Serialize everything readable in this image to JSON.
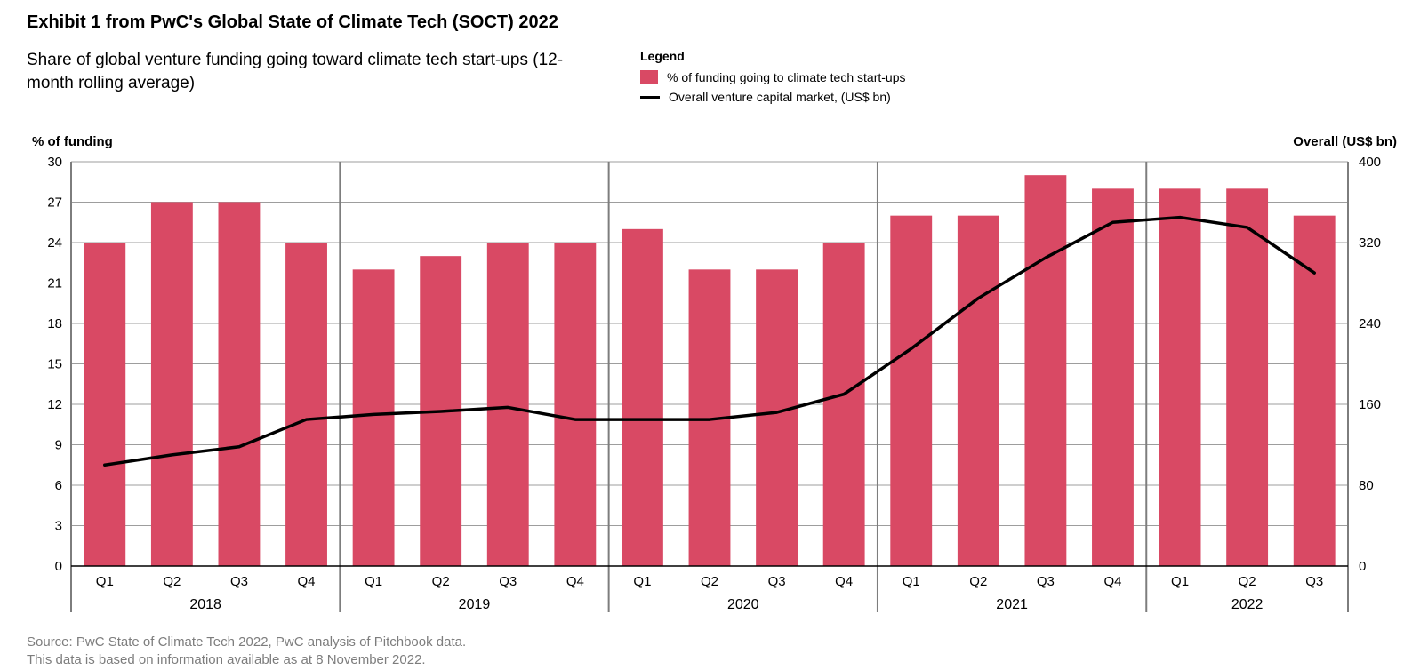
{
  "title": "Exhibit 1 from PwC's Global State of Climate Tech (SOCT) 2022",
  "subtitle": "Share of global venture funding going toward climate tech start-ups (12-month rolling average)",
  "legend": {
    "title": "Legend",
    "bar_label": "% of funding going to climate tech start-ups",
    "line_label": "Overall venture capital market, (US$ bn)"
  },
  "source": {
    "line1": "Source: PwC State of Climate Tech 2022, PwC analysis of Pitchbook data.",
    "line2": "This data is based on information available as at 8 November 2022."
  },
  "chart": {
    "type": "bar+line",
    "left_axis": {
      "title": "% of funding",
      "min": 0,
      "max": 30,
      "ticks": [
        0,
        3,
        6,
        9,
        12,
        15,
        18,
        21,
        24,
        27,
        30
      ]
    },
    "right_axis": {
      "title": "Overall (US$ bn)",
      "min": 0,
      "max": 400,
      "ticks": [
        0,
        80,
        160,
        240,
        320,
        400
      ]
    },
    "colors": {
      "bar_fill": "#d94964",
      "line_stroke": "#000000",
      "grid": "#7d7d7d",
      "year_separator": "#7d7d7d",
      "axis": "#000000",
      "background": "#ffffff",
      "source_text": "#7d7d7d"
    },
    "style": {
      "bar_width_ratio": 0.62,
      "line_width": 3.5,
      "separator_width": 2,
      "title_fontsize": 20,
      "subtitle_fontsize": 19,
      "axis_title_fontsize": 15,
      "tick_fontsize": 15,
      "legend_fontsize": 14,
      "source_fontsize": 15
    },
    "groups": [
      {
        "year": "2018",
        "quarters": [
          {
            "q": "Q1",
            "bar": 24,
            "line": 100
          },
          {
            "q": "Q2",
            "bar": 27,
            "line": 110
          },
          {
            "q": "Q3",
            "bar": 27,
            "line": 118
          },
          {
            "q": "Q4",
            "bar": 24,
            "line": 145
          }
        ]
      },
      {
        "year": "2019",
        "quarters": [
          {
            "q": "Q1",
            "bar": 22,
            "line": 150
          },
          {
            "q": "Q2",
            "bar": 23,
            "line": 153
          },
          {
            "q": "Q3",
            "bar": 24,
            "line": 157
          },
          {
            "q": "Q4",
            "bar": 24,
            "line": 145
          }
        ]
      },
      {
        "year": "2020",
        "quarters": [
          {
            "q": "Q1",
            "bar": 25,
            "line": 145
          },
          {
            "q": "Q2",
            "bar": 22,
            "line": 145
          },
          {
            "q": "Q3",
            "bar": 22,
            "line": 152
          },
          {
            "q": "Q4",
            "bar": 24,
            "line": 170
          }
        ]
      },
      {
        "year": "2021",
        "quarters": [
          {
            "q": "Q1",
            "bar": 26,
            "line": 215
          },
          {
            "q": "Q2",
            "bar": 26,
            "line": 265
          },
          {
            "q": "Q3",
            "bar": 29,
            "line": 305
          },
          {
            "q": "Q4",
            "bar": 28,
            "line": 340
          }
        ]
      },
      {
        "year": "2022",
        "quarters": [
          {
            "q": "Q1",
            "bar": 28,
            "line": 345
          },
          {
            "q": "Q2",
            "bar": 28,
            "line": 335
          },
          {
            "q": "Q3",
            "bar": 26,
            "line": 290
          }
        ]
      }
    ]
  }
}
